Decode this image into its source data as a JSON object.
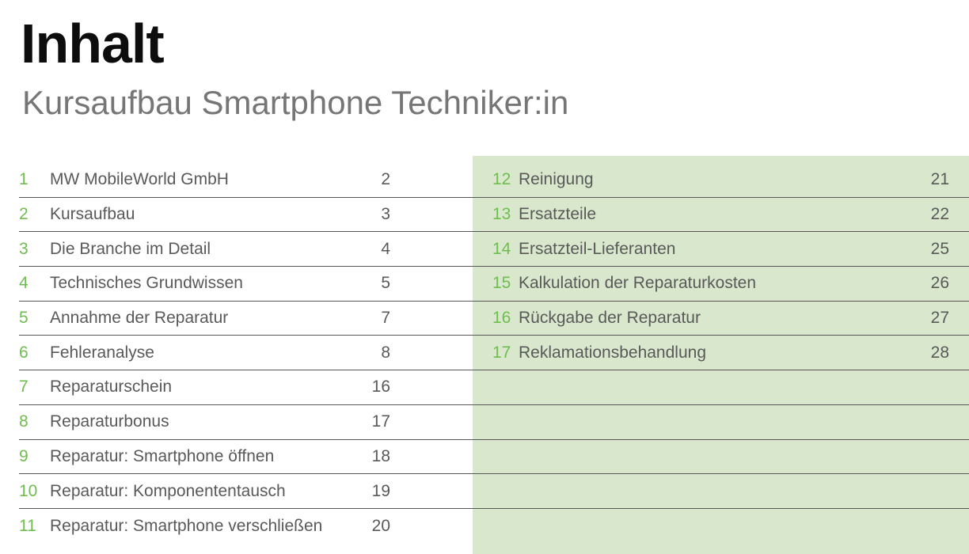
{
  "page": {
    "title": "Inhalt",
    "subtitle": "Kursaufbau Smartphone Techniker:in"
  },
  "colors": {
    "accent_green": "#6fbc4f",
    "panel_green": "#d9e8cd",
    "text_gray": "#595959",
    "line_gray": "#575757",
    "title_black": "#0d0d0d",
    "subtitle_gray": "#767676"
  },
  "toc": {
    "left": [
      {
        "num": "1",
        "label": "MW MobileWorld GmbH",
        "page": "2"
      },
      {
        "num": "2",
        "label": "Kursaufbau",
        "page": "3"
      },
      {
        "num": "3",
        "label": "Die Branche im Detail",
        "page": "4"
      },
      {
        "num": "4",
        "label": "Technisches Grundwissen",
        "page": "5"
      },
      {
        "num": "5",
        "label": "Annahme der Reparatur",
        "page": "7"
      },
      {
        "num": "6",
        "label": "Fehleranalyse",
        "page": "8"
      },
      {
        "num": "7",
        "label": "Reparaturschein",
        "page": "16"
      },
      {
        "num": "8",
        "label": "Reparaturbonus",
        "page": "17"
      },
      {
        "num": "9",
        "label": "Reparatur: Smartphone öffnen",
        "page": "18"
      },
      {
        "num": "10",
        "label": "Reparatur: Komponententausch",
        "page": "19"
      },
      {
        "num": "11",
        "label": "Reparatur: Smartphone verschließen",
        "page": "20"
      }
    ],
    "right": [
      {
        "num": "12",
        "label": "Reinigung",
        "page": "21"
      },
      {
        "num": "13",
        "label": "Ersatzteile",
        "page": "22"
      },
      {
        "num": "14",
        "label": "Ersatzteil-Lieferanten",
        "page": "25"
      },
      {
        "num": "15",
        "label": "Kalkulation der Reparaturkosten",
        "page": "26"
      },
      {
        "num": "16",
        "label": "Rückgabe der Reparatur",
        "page": "27"
      },
      {
        "num": "17",
        "label": "Reklamationsbehandlung",
        "page": "28"
      }
    ],
    "right_empty_rows": 5
  }
}
